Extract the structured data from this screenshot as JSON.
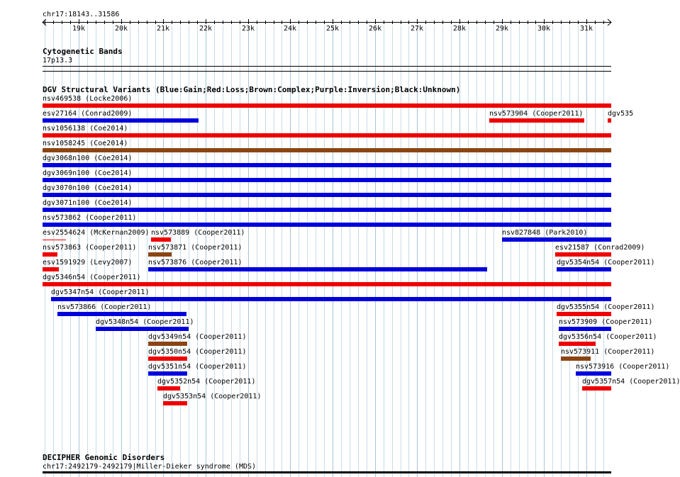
{
  "colors": {
    "gain": "#0000dd",
    "loss": "#ee0000",
    "complex": "#8b4513",
    "inversion": "#800080",
    "unknown": "#000000",
    "grid": "#c8dce8",
    "grid_dark": "#a8c4d8"
  },
  "ruler": {
    "position_label": "chr17:18143..31586",
    "ticks": [
      "19k",
      "20k",
      "21k",
      "22k",
      "23k",
      "24k",
      "25k",
      "26k",
      "27k",
      "28k",
      "29k",
      "30k",
      "31k"
    ]
  },
  "cytoband": {
    "title": "Cytogenetic Bands",
    "band": "17p13.3"
  },
  "dgv": {
    "title": "DGV Structural Variants (Blue:Gain;Red:Loss;Brown:Complex;Purple:Inversion;Black:Unknown)",
    "features": [
      {
        "label": "nsv469538 (Locke2006)",
        "start": 18143,
        "end": 31586,
        "type": "loss",
        "row": 0
      },
      {
        "label": "esv27164 (Conrad2009)",
        "start": 18143,
        "end": 21825,
        "type": "gain",
        "row": 1
      },
      {
        "label": "nsv573904 (Cooper2011)",
        "start": 28700,
        "end": 30950,
        "type": "loss",
        "row": 1
      },
      {
        "label": "dgv535",
        "start": 31510,
        "end": 31586,
        "type": "loss",
        "row": 1
      },
      {
        "label": "nsv1056138 (Coe2014)",
        "start": 18143,
        "end": 31586,
        "type": "loss",
        "row": 2
      },
      {
        "label": "nsv1058245 (Coe2014)",
        "start": 18143,
        "end": 31586,
        "type": "complex",
        "row": 3
      },
      {
        "label": "dgv3068n100 (Coe2014)",
        "start": 18143,
        "end": 31586,
        "type": "gain",
        "row": 4
      },
      {
        "label": "dgv3069n100 (Coe2014)",
        "start": 18143,
        "end": 31586,
        "type": "gain",
        "row": 5
      },
      {
        "label": "dgv3070n100 (Coe2014)",
        "start": 18143,
        "end": 31586,
        "type": "gain",
        "row": 6
      },
      {
        "label": "dgv3071n100 (Coe2014)",
        "start": 18143,
        "end": 31586,
        "type": "gain",
        "row": 7
      },
      {
        "label": "nsv573862 (Cooper2011)",
        "start": 18143,
        "end": 31586,
        "type": "gain",
        "row": 8
      },
      {
        "label": "esv2554624 (McKernan2009)",
        "start": 18143,
        "end": 18700,
        "type": "loss",
        "row": 9,
        "thin": true
      },
      {
        "label": "nsv573889 (Cooper2011)",
        "start": 20700,
        "end": 21170,
        "type": "loss",
        "row": 9
      },
      {
        "label": "nsv827848 (Park2010)",
        "start": 29000,
        "end": 31586,
        "type": "gain",
        "row": 9
      },
      {
        "label": "nsv573863 (Cooper2011)",
        "start": 18143,
        "end": 18500,
        "type": "loss",
        "row": 10
      },
      {
        "label": "nsv573871 (Cooper2011)",
        "start": 20640,
        "end": 21200,
        "type": "complex",
        "row": 10
      },
      {
        "label": "esv21587 (Conrad2009)",
        "start": 30270,
        "end": 31586,
        "type": "loss",
        "row": 10
      },
      {
        "label": "esv1591929 (Levy2007)",
        "start": 18143,
        "end": 18530,
        "type": "loss",
        "row": 11
      },
      {
        "label": "nsv573876 (Cooper2011)",
        "start": 20640,
        "end": 28650,
        "type": "gain",
        "row": 11
      },
      {
        "label": "dgv5354n54 (Cooper2011)",
        "start": 30300,
        "end": 31586,
        "type": "gain",
        "row": 11
      },
      {
        "label": "dgv5346n54 (Cooper2011)",
        "start": 18143,
        "end": 31586,
        "type": "loss",
        "row": 12
      },
      {
        "label": "dgv5347n54 (Cooper2011)",
        "start": 18350,
        "end": 31586,
        "type": "gain",
        "row": 13
      },
      {
        "label": "nsv573866 (Cooper2011)",
        "start": 18500,
        "end": 21550,
        "type": "gain",
        "row": 14
      },
      {
        "label": "dgv5355n54 (Cooper2011)",
        "start": 30300,
        "end": 31586,
        "type": "loss",
        "row": 14
      },
      {
        "label": "dgv5348n54 (Cooper2011)",
        "start": 19400,
        "end": 21600,
        "type": "gain",
        "row": 15
      },
      {
        "label": "nsv573909 (Cooper2011)",
        "start": 30350,
        "end": 31586,
        "type": "gain",
        "row": 15
      },
      {
        "label": "dgv5349n54 (Cooper2011)",
        "start": 20640,
        "end": 21560,
        "type": "complex",
        "row": 16
      },
      {
        "label": "dgv5356n54 (Cooper2011)",
        "start": 30350,
        "end": 31210,
        "type": "loss",
        "row": 16
      },
      {
        "label": "dgv5350n54 (Cooper2011)",
        "start": 20640,
        "end": 21560,
        "type": "loss",
        "row": 17
      },
      {
        "label": "nsv573911 (Cooper2011)",
        "start": 30400,
        "end": 31100,
        "type": "complex",
        "row": 17
      },
      {
        "label": "dgv5351n54 (Cooper2011)",
        "start": 20640,
        "end": 21560,
        "type": "gain",
        "row": 18
      },
      {
        "label": "nsv573916 (Cooper2011)",
        "start": 30750,
        "end": 31586,
        "type": "gain",
        "row": 18
      },
      {
        "label": "dgv5352n54 (Cooper2011)",
        "start": 20860,
        "end": 21400,
        "type": "loss",
        "row": 19
      },
      {
        "label": "dgv5357n54 (Cooper2011)",
        "start": 30900,
        "end": 31586,
        "type": "loss",
        "row": 19
      },
      {
        "label": "dgv5353n54 (Cooper2011)",
        "start": 21000,
        "end": 21560,
        "type": "loss",
        "row": 20
      }
    ]
  },
  "decipher": {
    "title": "DECIPHER Genomic Disorders",
    "feature": "chr17:2492179-2492179|Miller-Dieker syndrome (MDS)"
  }
}
